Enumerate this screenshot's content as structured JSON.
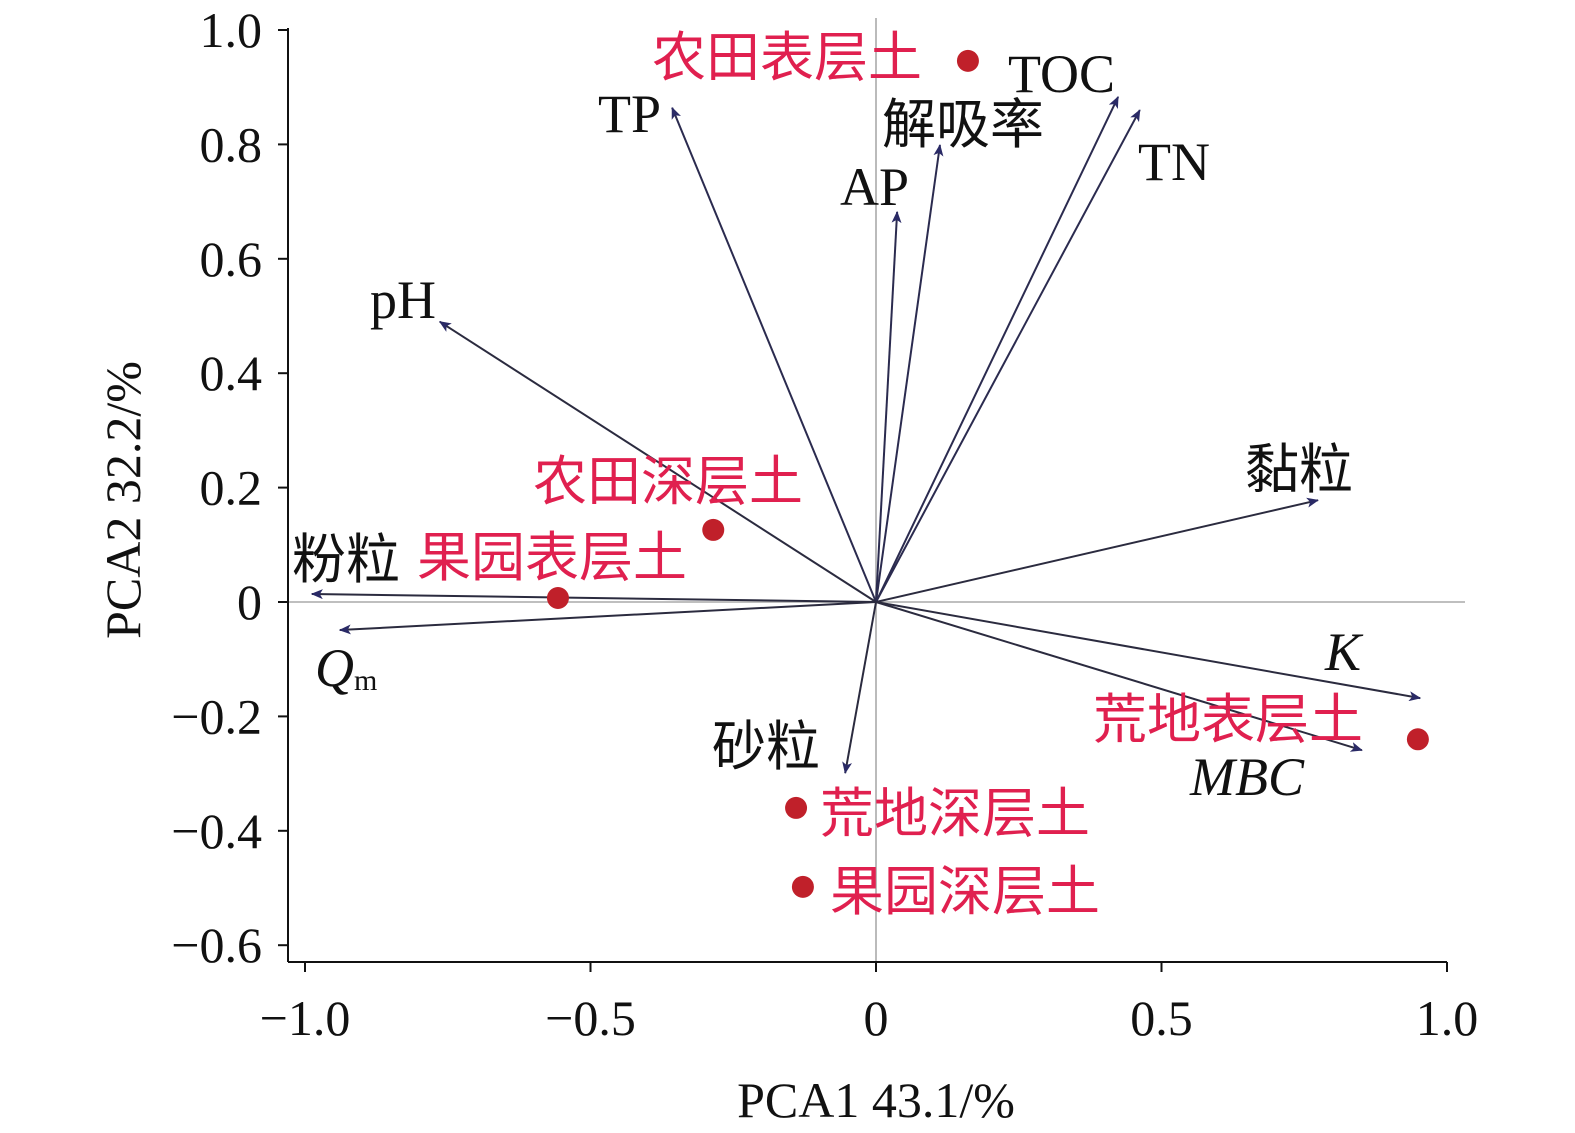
{
  "chart_data": {
    "type": "scatter",
    "subtype": "pca-biplot",
    "xlabel": "PCA1 43.1/%",
    "ylabel": "PCA2 32.2/%",
    "xlim": [
      -1.0,
      1.0
    ],
    "ylim": [
      -0.6,
      1.0
    ],
    "xticks": [
      "−1.0",
      "−0.5",
      "0",
      "0.5",
      "1.0"
    ],
    "xtick_values": [
      -1.0,
      -0.5,
      0,
      0.5,
      1.0
    ],
    "yticks": [
      "1.0",
      "0.8",
      "0.6",
      "0.4",
      "0.2",
      "0",
      "−0.2",
      "−0.4",
      "−0.6"
    ],
    "ytick_values": [
      1.0,
      0.8,
      0.6,
      0.4,
      0.2,
      0,
      -0.2,
      -0.4,
      -0.6
    ],
    "reference_lines": "x=0 and y=0",
    "colors": {
      "point": "#c0202a",
      "point_label": "#e0204f",
      "arrow": "#2b2b3f",
      "arrowhead": "#2a2a66"
    },
    "vectors": [
      {
        "name": "TP",
        "x": -0.357,
        "y": 0.864
      },
      {
        "name": "AP",
        "x": 0.037,
        "y": 0.682
      },
      {
        "name": "解吸率",
        "x": 0.112,
        "y": 0.799
      },
      {
        "name": "TOC",
        "x": 0.424,
        "y": 0.883
      },
      {
        "name": "TN",
        "x": 0.462,
        "y": 0.86
      },
      {
        "name": "pH",
        "x": -0.764,
        "y": 0.49
      },
      {
        "name": "黏粒",
        "x": 0.774,
        "y": 0.178
      },
      {
        "name": "粉粒",
        "x": -0.988,
        "y": 0.014
      },
      {
        "name": "Q",
        "sub": "m",
        "x": -0.939,
        "y": -0.049
      },
      {
        "name": "K",
        "x": 0.953,
        "y": -0.168
      },
      {
        "name": "MBC",
        "x": 0.851,
        "y": -0.259
      },
      {
        "name": "砂粒",
        "x": -0.054,
        "y": -0.299
      }
    ],
    "points": [
      {
        "name": "农田表层土",
        "x": 0.161,
        "y": 0.946
      },
      {
        "name": "农田深层土",
        "x": -0.285,
        "y": 0.126
      },
      {
        "name": "果园表层土",
        "x": -0.557,
        "y": 0.007
      },
      {
        "name": "荒地表层土",
        "x": 0.949,
        "y": -0.24
      },
      {
        "name": "荒地深层土",
        "x": -0.14,
        "y": -0.36
      },
      {
        "name": "果园深层土",
        "x": -0.128,
        "y": -0.498
      }
    ]
  }
}
